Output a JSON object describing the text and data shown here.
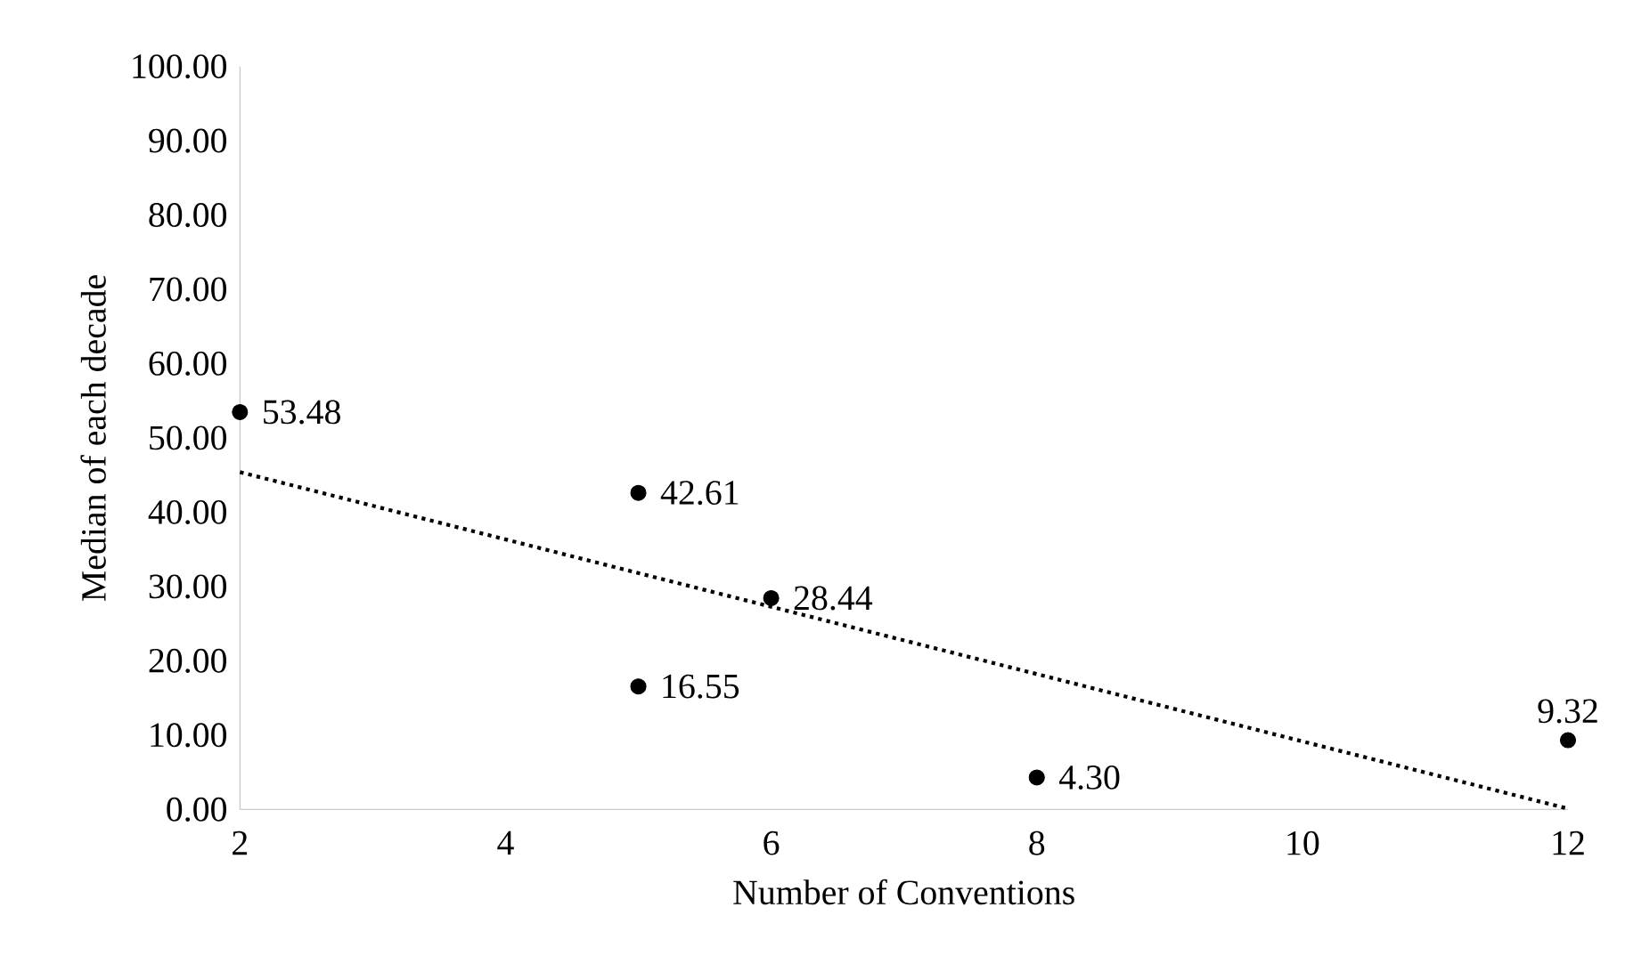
{
  "chart_data": {
    "type": "scatter",
    "xlabel": "Number of Conventions",
    "ylabel": "Median of each decade",
    "xlim": [
      2,
      12
    ],
    "xticks": [
      2,
      4,
      6,
      8,
      10,
      12
    ],
    "ylim": [
      0,
      100
    ],
    "yticks": [
      {
        "value": 0,
        "label": "0.00"
      },
      {
        "value": 10,
        "label": "10.00"
      },
      {
        "value": 20,
        "label": "20.00"
      },
      {
        "value": 30,
        "label": "30.00"
      },
      {
        "value": 40,
        "label": "40.00"
      },
      {
        "value": 50,
        "label": "50.00"
      },
      {
        "value": 60,
        "label": "60.00"
      },
      {
        "value": 70,
        "label": "70.00"
      },
      {
        "value": 80,
        "label": "80.00"
      },
      {
        "value": 90,
        "label": "90.00"
      },
      {
        "value": 100,
        "label": "100.00"
      }
    ],
    "grid": false,
    "series": [
      {
        "color": "#000000",
        "marker": "circle",
        "x": [
          2,
          5,
          5,
          6,
          8,
          12
        ],
        "values": [
          53.48,
          42.61,
          16.55,
          28.44,
          4.3,
          9.32
        ],
        "value_labels": [
          "53.48",
          "42.61",
          "16.55",
          "28.44",
          "4.30",
          "9.32"
        ]
      },
      {
        "type": "line",
        "color": "#000000",
        "marker": "none",
        "line_style": "dotted",
        "x": [
          2,
          12
        ],
        "values": [
          45.4,
          0.1
        ]
      }
    ]
  }
}
